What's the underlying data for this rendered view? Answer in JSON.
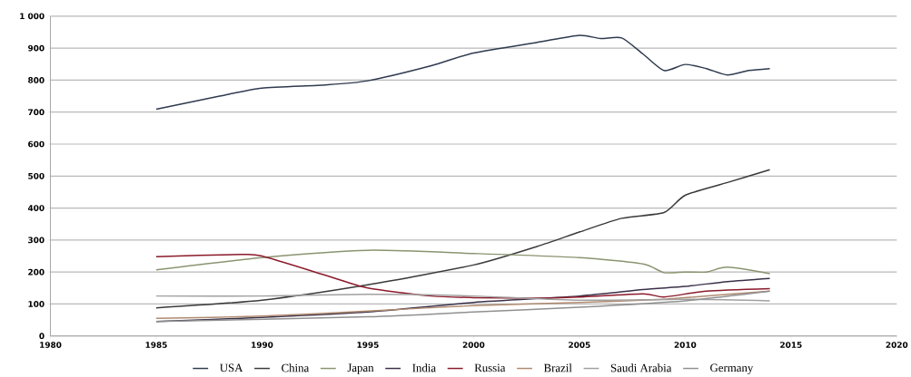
{
  "chart_data": {
    "type": "line",
    "xlim": [
      1980,
      2020
    ],
    "ylim": [
      0,
      1000
    ],
    "xticks": [
      1980,
      1985,
      1990,
      1995,
      2000,
      2005,
      2010,
      2015,
      2020
    ],
    "yticks": [
      0,
      100,
      200,
      300,
      400,
      500,
      600,
      700,
      800,
      900,
      {
        "value": 1000,
        "label": "1 000"
      }
    ],
    "grid": "y",
    "legend": "bottom",
    "marker": "none",
    "line_style": "solid",
    "series": [
      {
        "name": "USA",
        "color": "#2f3a4f",
        "x": [
          1985,
          1988,
          1990,
          1993,
          1995,
          1998,
          2000,
          2003,
          2005,
          2006,
          2007,
          2008,
          2009,
          2010,
          2011,
          2012,
          2013,
          2014
        ],
        "values": [
          709,
          750,
          775,
          785,
          798,
          845,
          885,
          918,
          940,
          930,
          932,
          882,
          830,
          849,
          836,
          816,
          830,
          836
        ]
      },
      {
        "name": "China",
        "color": "#3a3a3a",
        "x": [
          1985,
          1990,
          1995,
          2000,
          2003,
          2005,
          2007,
          2009,
          2010,
          2012,
          2014
        ],
        "values": [
          88,
          112,
          160,
          222,
          280,
          325,
          368,
          386,
          440,
          480,
          520
        ]
      },
      {
        "name": "Japan",
        "color": "#8a9470",
        "x": [
          1985,
          1990,
          1995,
          2000,
          2005,
          2008,
          2009,
          2010,
          2011,
          2012,
          2014
        ],
        "values": [
          207,
          245,
          268,
          258,
          245,
          225,
          198,
          200,
          200,
          215,
          195
        ]
      },
      {
        "name": "India",
        "color": "#3a3048",
        "x": [
          1985,
          1990,
          1995,
          2000,
          2005,
          2008,
          2010,
          2012,
          2014
        ],
        "values": [
          45,
          58,
          75,
          105,
          125,
          145,
          155,
          170,
          180
        ]
      },
      {
        "name": "Russia",
        "color": "#8b1a2a",
        "x": [
          1985,
          1989,
          1990,
          1993,
          1995,
          1998,
          2000,
          2003,
          2005,
          2008,
          2009,
          2011,
          2014
        ],
        "values": [
          248,
          255,
          250,
          190,
          150,
          125,
          120,
          118,
          122,
          132,
          122,
          140,
          148
        ]
      },
      {
        "name": "Brazil",
        "color": "#b08a70",
        "x": [
          1985,
          1990,
          1995,
          2000,
          2005,
          2009,
          2012,
          2014
        ],
        "values": [
          55,
          62,
          78,
          95,
          105,
          115,
          130,
          140
        ]
      },
      {
        "name": "Saudi Arabia",
        "color": "#a0a0a0",
        "x": [
          1985,
          1990,
          1995,
          2000,
          2005,
          2010,
          2014
        ],
        "values": [
          125,
          125,
          130,
          125,
          112,
          115,
          110
        ]
      },
      {
        "name": "Germany",
        "color": "#909090",
        "x": [
          1985,
          1995,
          2000,
          2005,
          2010,
          2014
        ],
        "values": [
          45,
          60,
          75,
          90,
          110,
          140
        ]
      }
    ]
  }
}
